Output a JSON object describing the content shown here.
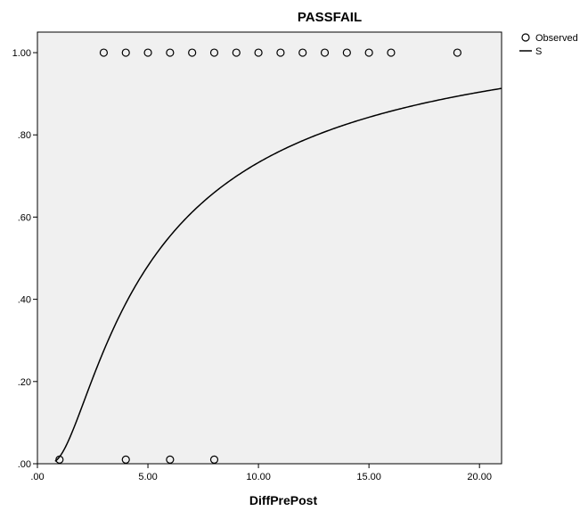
{
  "chart_data": {
    "type": "scatter",
    "title": "PASSFAIL",
    "xlabel": "DiffPrePost",
    "ylabel": "",
    "xlim": [
      0,
      21
    ],
    "ylim": [
      0,
      1.05
    ],
    "x_ticks": [
      0,
      5,
      10,
      15,
      20
    ],
    "x_tick_labels": [
      ".00",
      "5.00",
      "10.00",
      "15.00",
      "20.00"
    ],
    "y_ticks": [
      0,
      0.2,
      0.4,
      0.6,
      0.8,
      1.0
    ],
    "y_tick_labels": [
      ".00",
      ".20",
      ".40",
      ".60",
      ".80",
      "1.00"
    ],
    "grid": false,
    "legend_position": "top-right",
    "colors": {
      "plot_background": "#f0f0f0",
      "marker": "#000000",
      "line": "#000000"
    },
    "series": [
      {
        "name": "Observed",
        "kind": "scatter",
        "marker": "open-circle",
        "x": [
          3,
          4,
          5,
          6,
          7,
          8,
          9,
          10,
          11,
          12,
          13,
          14,
          15,
          16,
          19,
          1,
          4,
          6,
          8
        ],
        "y": [
          1,
          1,
          1,
          1,
          1,
          1,
          1,
          1,
          1,
          1,
          1,
          1,
          1,
          1,
          1,
          0,
          0,
          0,
          0
        ]
      },
      {
        "name": "S",
        "kind": "line",
        "model": "S-curve: y = exp(b0 + b1/x)",
        "b0": 0.109,
        "b1": -4.2,
        "x_range": [
          0.8,
          21
        ]
      }
    ]
  }
}
